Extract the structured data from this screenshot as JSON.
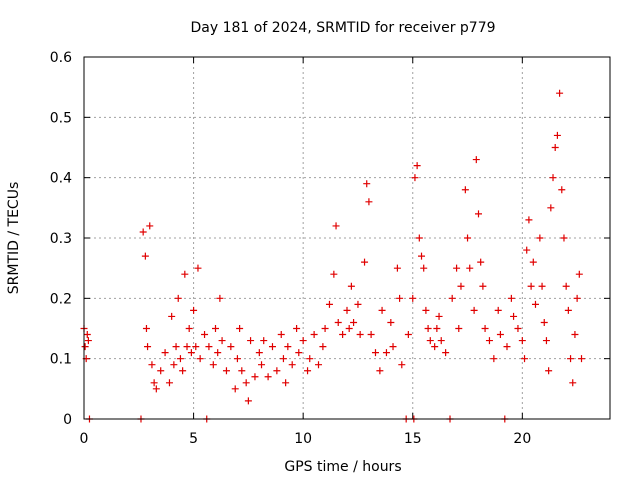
{
  "chart_data": {
    "type": "scatter",
    "title": "Day 181 of 2024, SRMTID for receiver p779",
    "xlabel": "GPS time / hours",
    "ylabel": "SRMTID / TECUs",
    "xlim": [
      0,
      24
    ],
    "ylim": [
      0,
      0.6
    ],
    "xticks": [
      0,
      5,
      10,
      15,
      20
    ],
    "xtick_labels": [
      "0",
      "5",
      "10",
      "15",
      "20"
    ],
    "yticks": [
      0,
      0.1,
      0.2,
      0.3,
      0.4,
      0.5,
      0.6
    ],
    "ytick_labels": [
      "0",
      "0.1",
      "0.2",
      "0.3",
      "0.4",
      "0.5",
      "0.6"
    ],
    "grid": true,
    "marker": "+",
    "color": "#e00000",
    "series": [
      {
        "name": "SRMTID",
        "points": [
          [
            0.0,
            0.15
          ],
          [
            0.05,
            0.12
          ],
          [
            0.1,
            0.1
          ],
          [
            0.15,
            0.14
          ],
          [
            0.2,
            0.13
          ],
          [
            0.25,
            0.0
          ],
          [
            2.6,
            0.0
          ],
          [
            2.7,
            0.31
          ],
          [
            2.8,
            0.27
          ],
          [
            2.85,
            0.15
          ],
          [
            2.9,
            0.12
          ],
          [
            3.0,
            0.32
          ],
          [
            3.1,
            0.09
          ],
          [
            3.2,
            0.06
          ],
          [
            3.3,
            0.05
          ],
          [
            3.5,
            0.08
          ],
          [
            3.7,
            0.11
          ],
          [
            3.9,
            0.06
          ],
          [
            4.0,
            0.17
          ],
          [
            4.1,
            0.09
          ],
          [
            4.2,
            0.12
          ],
          [
            4.3,
            0.2
          ],
          [
            4.4,
            0.1
          ],
          [
            4.5,
            0.08
          ],
          [
            4.6,
            0.24
          ],
          [
            4.7,
            0.12
          ],
          [
            4.8,
            0.15
          ],
          [
            4.9,
            0.11
          ],
          [
            5.0,
            0.18
          ],
          [
            5.1,
            0.12
          ],
          [
            5.2,
            0.25
          ],
          [
            5.3,
            0.1
          ],
          [
            5.5,
            0.14
          ],
          [
            5.6,
            0.0
          ],
          [
            5.7,
            0.12
          ],
          [
            5.9,
            0.09
          ],
          [
            6.0,
            0.15
          ],
          [
            6.1,
            0.11
          ],
          [
            6.2,
            0.2
          ],
          [
            6.3,
            0.13
          ],
          [
            6.5,
            0.08
          ],
          [
            6.7,
            0.12
          ],
          [
            6.9,
            0.05
          ],
          [
            7.0,
            0.1
          ],
          [
            7.1,
            0.15
          ],
          [
            7.2,
            0.08
          ],
          [
            7.4,
            0.06
          ],
          [
            7.5,
            0.03
          ],
          [
            7.6,
            0.13
          ],
          [
            7.8,
            0.07
          ],
          [
            8.0,
            0.11
          ],
          [
            8.1,
            0.09
          ],
          [
            8.2,
            0.13
          ],
          [
            8.4,
            0.07
          ],
          [
            8.6,
            0.12
          ],
          [
            8.8,
            0.08
          ],
          [
            9.0,
            0.14
          ],
          [
            9.1,
            0.1
          ],
          [
            9.2,
            0.06
          ],
          [
            9.3,
            0.12
          ],
          [
            9.5,
            0.09
          ],
          [
            9.7,
            0.15
          ],
          [
            9.8,
            0.11
          ],
          [
            10.0,
            0.13
          ],
          [
            10.2,
            0.08
          ],
          [
            10.3,
            0.1
          ],
          [
            10.5,
            0.14
          ],
          [
            10.7,
            0.09
          ],
          [
            10.9,
            0.12
          ],
          [
            11.0,
            0.15
          ],
          [
            11.2,
            0.19
          ],
          [
            11.4,
            0.24
          ],
          [
            11.5,
            0.32
          ],
          [
            11.6,
            0.16
          ],
          [
            11.8,
            0.14
          ],
          [
            12.0,
            0.18
          ],
          [
            12.1,
            0.15
          ],
          [
            12.2,
            0.22
          ],
          [
            12.3,
            0.16
          ],
          [
            12.5,
            0.19
          ],
          [
            12.6,
            0.14
          ],
          [
            12.8,
            0.26
          ],
          [
            12.9,
            0.39
          ],
          [
            13.0,
            0.36
          ],
          [
            13.1,
            0.14
          ],
          [
            13.3,
            0.11
          ],
          [
            13.5,
            0.08
          ],
          [
            13.6,
            0.18
          ],
          [
            13.8,
            0.11
          ],
          [
            14.0,
            0.16
          ],
          [
            14.1,
            0.12
          ],
          [
            14.3,
            0.25
          ],
          [
            14.4,
            0.2
          ],
          [
            14.5,
            0.09
          ],
          [
            14.7,
            0.0
          ],
          [
            14.8,
            0.14
          ],
          [
            15.0,
            0.2
          ],
          [
            15.05,
            0.0
          ],
          [
            15.1,
            0.4
          ],
          [
            15.2,
            0.42
          ],
          [
            15.3,
            0.3
          ],
          [
            15.4,
            0.27
          ],
          [
            15.5,
            0.25
          ],
          [
            15.6,
            0.18
          ],
          [
            15.7,
            0.15
          ],
          [
            15.8,
            0.13
          ],
          [
            16.0,
            0.12
          ],
          [
            16.1,
            0.15
          ],
          [
            16.2,
            0.17
          ],
          [
            16.3,
            0.13
          ],
          [
            16.5,
            0.11
          ],
          [
            16.7,
            0.0
          ],
          [
            16.8,
            0.2
          ],
          [
            17.0,
            0.25
          ],
          [
            17.1,
            0.15
          ],
          [
            17.2,
            0.22
          ],
          [
            17.4,
            0.38
          ],
          [
            17.5,
            0.3
          ],
          [
            17.6,
            0.25
          ],
          [
            17.8,
            0.18
          ],
          [
            17.9,
            0.43
          ],
          [
            18.0,
            0.34
          ],
          [
            18.1,
            0.26
          ],
          [
            18.2,
            0.22
          ],
          [
            18.3,
            0.15
          ],
          [
            18.5,
            0.13
          ],
          [
            18.7,
            0.1
          ],
          [
            18.9,
            0.18
          ],
          [
            19.0,
            0.14
          ],
          [
            19.2,
            0.0
          ],
          [
            19.3,
            0.12
          ],
          [
            19.5,
            0.2
          ],
          [
            19.6,
            0.17
          ],
          [
            19.8,
            0.15
          ],
          [
            20.0,
            0.13
          ],
          [
            20.1,
            0.1
          ],
          [
            20.2,
            0.28
          ],
          [
            20.3,
            0.33
          ],
          [
            20.4,
            0.22
          ],
          [
            20.5,
            0.26
          ],
          [
            20.6,
            0.19
          ],
          [
            20.8,
            0.3
          ],
          [
            20.9,
            0.22
          ],
          [
            21.0,
            0.16
          ],
          [
            21.1,
            0.13
          ],
          [
            21.2,
            0.08
          ],
          [
            21.3,
            0.35
          ],
          [
            21.4,
            0.4
          ],
          [
            21.5,
            0.45
          ],
          [
            21.6,
            0.47
          ],
          [
            21.7,
            0.54
          ],
          [
            21.8,
            0.38
          ],
          [
            21.9,
            0.3
          ],
          [
            22.0,
            0.22
          ],
          [
            22.1,
            0.18
          ],
          [
            22.2,
            0.1
          ],
          [
            22.3,
            0.06
          ],
          [
            22.4,
            0.14
          ],
          [
            22.5,
            0.2
          ],
          [
            22.6,
            0.24
          ],
          [
            22.7,
            0.1
          ]
        ]
      }
    ]
  }
}
